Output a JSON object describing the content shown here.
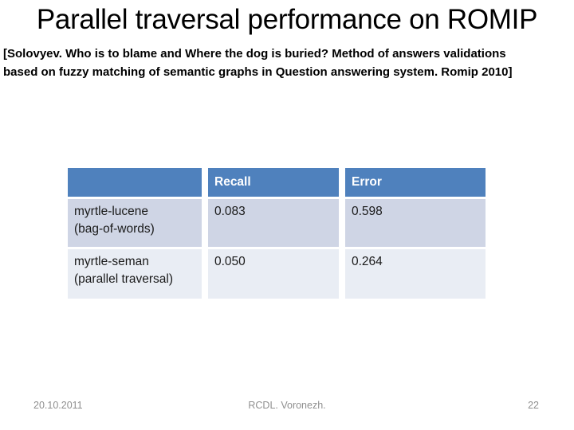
{
  "slide": {
    "title": "Parallel traversal performance on ROMIP",
    "citation_lines": [
      "[Solovyev. Who is to blame and Where the dog is buried? Method of answers validations",
      "based on fuzzy matching of semantic graphs in Question answering system. Romip 2010]"
    ],
    "footer": {
      "date": "20.10.2011",
      "venue": "RCDL. Voronezh.",
      "page_number": "22"
    }
  },
  "table": {
    "columns": [
      "",
      "Recall",
      "Error"
    ],
    "rows": [
      {
        "system_line1": "myrtle-lucene",
        "system_line2": "(bag-of-words)",
        "recall": "0.083",
        "error": "0.598"
      },
      {
        "system_line1": "myrtle-seman",
        "system_line2": "(parallel traversal)",
        "recall": "0.050",
        "error": "0.264"
      }
    ]
  },
  "colors": {
    "table_header_bg": "#4f81bd",
    "table_row_odd_bg": "#cfd5e5",
    "table_row_even_bg": "#e9edf4",
    "table_header_text": "#ffffff",
    "body_text": "#1a1a1a",
    "footer_text": "#8f8f8f",
    "slide_bg": "#ffffff"
  }
}
